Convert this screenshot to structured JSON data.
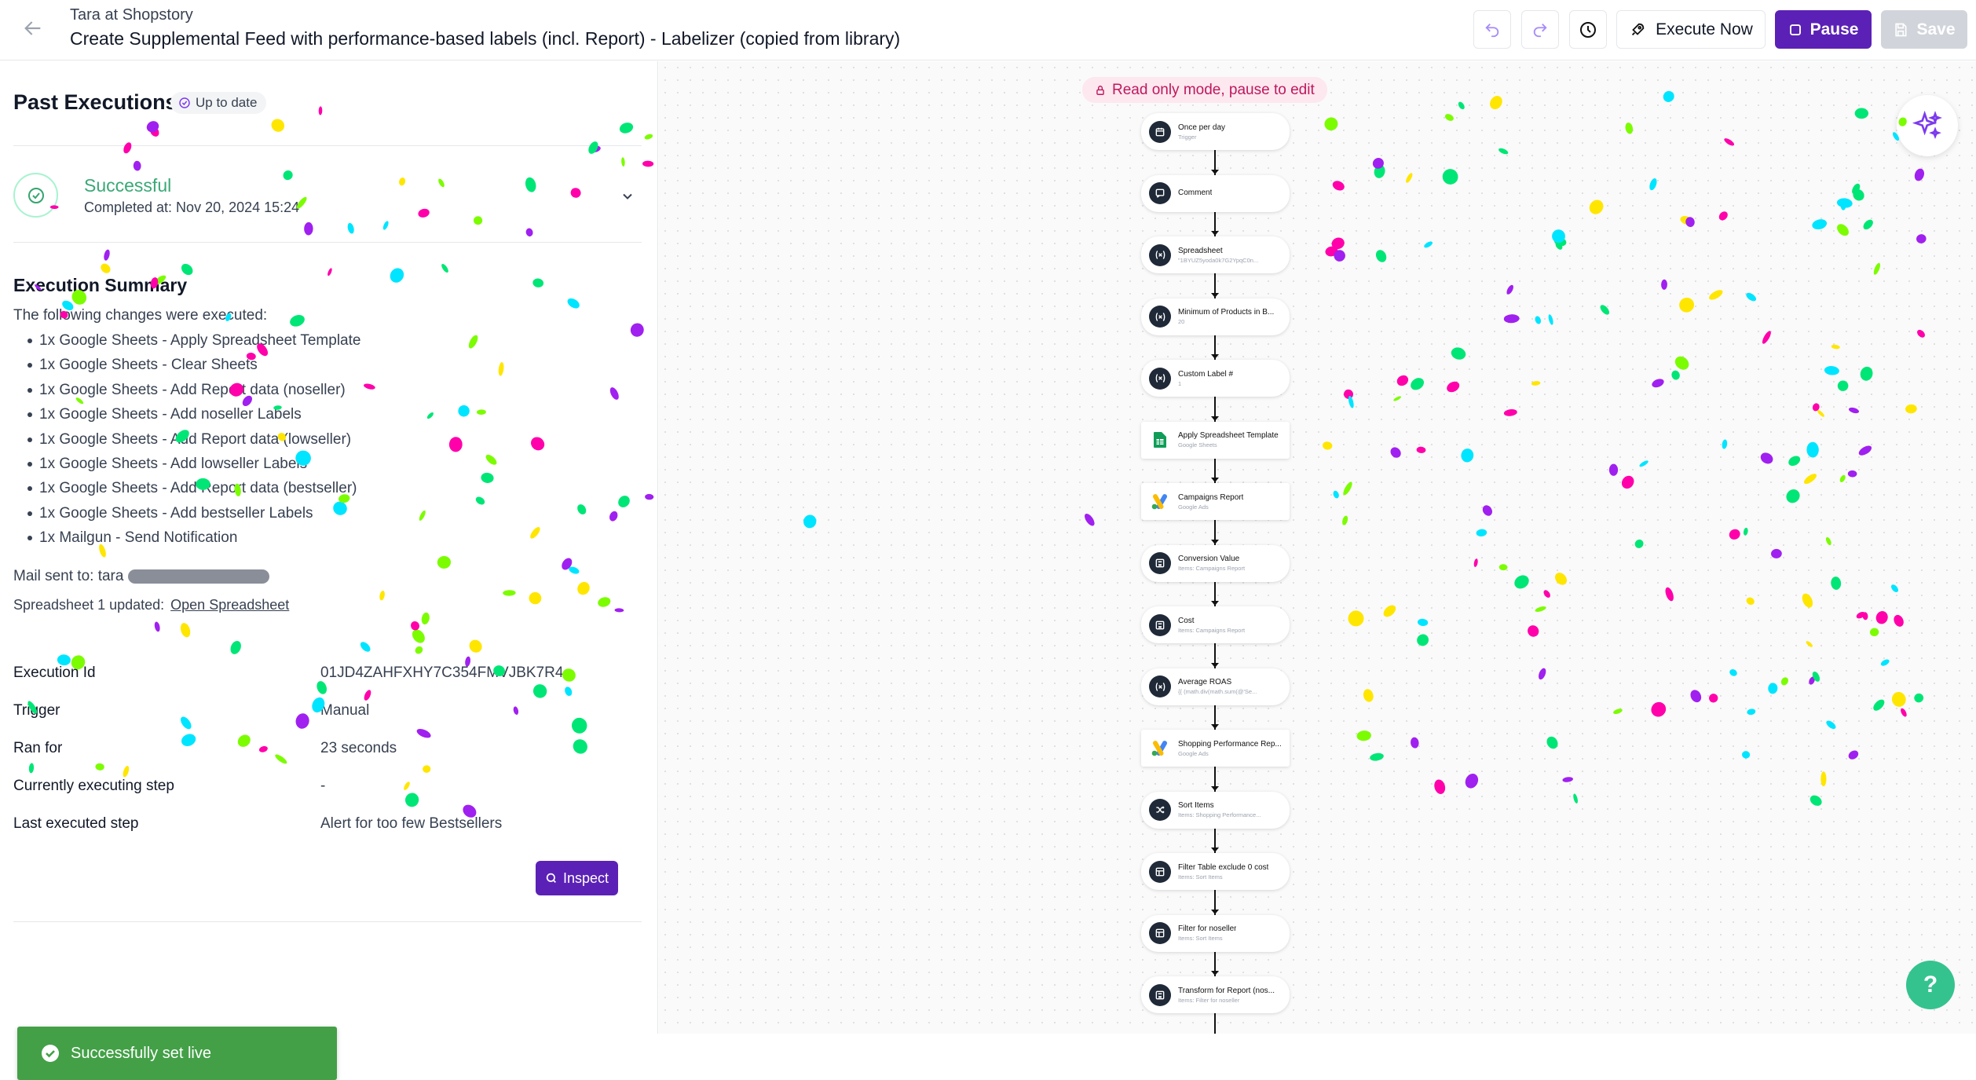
{
  "header": {
    "breadcrumb": "Tara at Shopstory",
    "title": "Create Supplemental Feed with performance-based labels (incl. Report) - Labelizer (copied from library)",
    "execute_label": "Execute Now",
    "pause_label": "Pause",
    "save_label": "Save"
  },
  "left": {
    "title": "Past Executions",
    "up_to_date": "Up to date",
    "status": "Successful",
    "completed_at": "Completed at: Nov 20, 2024 15:24",
    "summary_title": "Execution Summary",
    "summary_intro": "The following changes were executed:",
    "changes": [
      "1x Google Sheets - Apply Spreadsheet Template",
      "1x Google Sheets - Clear Sheets",
      "1x Google Sheets - Add Report data (noseller)",
      "1x Google Sheets - Add noseller Labels",
      "1x Google Sheets - Add Report data (lowseller)",
      "1x Google Sheets - Add lowseller Labels",
      "1x Google Sheets - Add Report data (bestseller)",
      "1x Google Sheets - Add bestseller Labels",
      "1x Mailgun - Send Notification"
    ],
    "mail_sent": "Mail sent to: tara",
    "sheet_updated": "Spreadsheet 1 updated:",
    "open_sheet": "Open Spreadsheet",
    "details": [
      {
        "label": "Execution Id",
        "value": "01JD4ZAHFXHY7C354FMVJBK7R4"
      },
      {
        "label": "Trigger",
        "value": "Manual"
      },
      {
        "label": "Ran for",
        "value": "23 seconds"
      },
      {
        "label": "Currently executing step",
        "value": "-"
      },
      {
        "label": "Last executed step",
        "value": "Alert for too few Bestsellers"
      }
    ],
    "inspect_label": "Inspect",
    "toast": "Successfully set live"
  },
  "canvas": {
    "readonly": "Read only mode, pause to edit",
    "help": "?",
    "nodes": [
      {
        "title": "Once per day",
        "sub": "Trigger",
        "icon": "calendar-icon"
      },
      {
        "title": "Comment",
        "sub": "",
        "icon": "comment-icon"
      },
      {
        "title": "Spreadsheet",
        "sub": "\"1BYUZ5yoda0k7G2YpqC0n...",
        "icon": "variable-icon"
      },
      {
        "title": "Minimum of Products in B...",
        "sub": "20",
        "icon": "variable-icon"
      },
      {
        "title": "Custom Label #",
        "sub": "1",
        "icon": "variable-icon"
      },
      {
        "title": "Apply Spreadsheet Template",
        "sub": "Google Sheets",
        "icon": "google-sheets-icon"
      },
      {
        "title": "Campaigns Report",
        "sub": "Google Ads",
        "icon": "google-ads-icon"
      },
      {
        "title": "Conversion Value",
        "sub": "Items: Campaigns Report",
        "icon": "calculator-icon"
      },
      {
        "title": "Cost",
        "sub": "Items: Campaigns Report",
        "icon": "calculator-icon"
      },
      {
        "title": "Average ROAS",
        "sub": "{{ (math.div(math.sum(@'Se...",
        "icon": "variable-icon"
      },
      {
        "title": "Shopping Performance Rep...",
        "sub": "Google Ads",
        "icon": "google-ads-icon"
      },
      {
        "title": "Sort Items",
        "sub": "Items: Shopping Performance...",
        "icon": "shuffle-icon"
      },
      {
        "title": "Filter Table exclude 0 cost",
        "sub": "Items: Sort Items",
        "icon": "table-icon"
      },
      {
        "title": "Filter for noseller",
        "sub": "Items: Sort Items",
        "icon": "table-icon"
      },
      {
        "title": "Transform for Report (nos...",
        "sub": "Items: Filter for noseller",
        "icon": "calculator-icon"
      }
    ]
  },
  "colors": {
    "accent": "#5b21b6",
    "success": "#43a047",
    "confetti": [
      "#ff00aa",
      "#ffe600",
      "#00e5ff",
      "#a020f0",
      "#00e676",
      "#7cfc00"
    ]
  }
}
